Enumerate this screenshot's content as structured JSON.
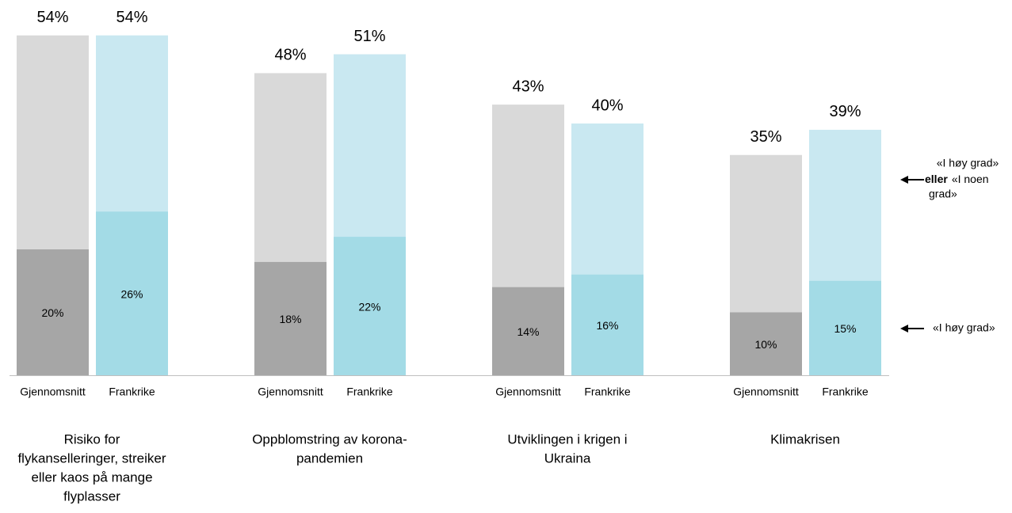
{
  "chart_data": {
    "type": "bar",
    "categories": [
      [
        "Risiko for",
        "flykanselleringer, streiker",
        "eller kaos på mange",
        "flyplasser"
      ],
      [
        "Oppblomstring av korona-",
        "pandemien"
      ],
      [
        "Utviklingen i krigen i",
        "Ukraina"
      ],
      [
        "Klimakrisen"
      ]
    ],
    "series": [
      {
        "name": "Gjennomsnitt",
        "color": "#d9d9d9",
        "dark_color": "#a6a6a6",
        "values": [
          54,
          48,
          43,
          35
        ],
        "value_labels": [
          "54%",
          "48%",
          "43%",
          "35%"
        ],
        "high_values": [
          20,
          18,
          14,
          10
        ],
        "high_value_labels": [
          "20%",
          "18%",
          "14%",
          "10%"
        ]
      },
      {
        "name": "Frankrike",
        "color": "#c9e8f1",
        "dark_color": "#a3dbe6",
        "values": [
          54,
          51,
          40,
          39
        ],
        "value_labels": [
          "54%",
          "51%",
          "40%",
          "39%"
        ],
        "high_values": [
          26,
          22,
          16,
          15
        ],
        "high_value_labels": [
          "26%",
          "22%",
          "16%",
          "15%"
        ]
      }
    ],
    "legend": {
      "total_lines": [
        "«I høy grad»",
        "eller",
        "«I noen",
        "grad»"
      ],
      "high": "«I høy grad»"
    }
  }
}
